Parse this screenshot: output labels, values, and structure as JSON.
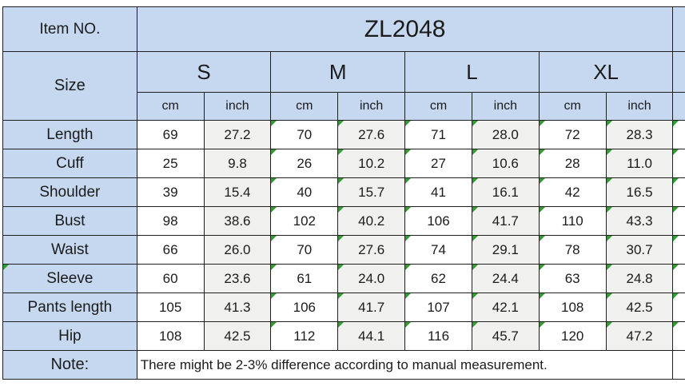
{
  "table": {
    "item_no_label": "Item NO.",
    "item_no_value": "ZL2048",
    "size_label": "Size",
    "sizes": [
      "S",
      "M",
      "L",
      "XL"
    ],
    "unit_headers": [
      "cm",
      "inch",
      "cm",
      "inch",
      "cm",
      "inch",
      "cm",
      "inch"
    ],
    "rows": [
      {
        "label": "Length",
        "values": [
          "69",
          "27.2",
          "70",
          "27.6",
          "71",
          "28.0",
          "72",
          "28.3"
        ]
      },
      {
        "label": "Cuff",
        "values": [
          "25",
          "9.8",
          "26",
          "10.2",
          "27",
          "10.6",
          "28",
          "11.0"
        ]
      },
      {
        "label": "Shoulder",
        "values": [
          "39",
          "15.4",
          "40",
          "15.7",
          "41",
          "16.1",
          "42",
          "16.5"
        ]
      },
      {
        "label": "Bust",
        "values": [
          "98",
          "38.6",
          "102",
          "40.2",
          "106",
          "41.7",
          "110",
          "43.3"
        ]
      },
      {
        "label": "Waist",
        "values": [
          "66",
          "26.0",
          "70",
          "27.6",
          "74",
          "29.1",
          "78",
          "30.7"
        ]
      },
      {
        "label": "Sleeve",
        "values": [
          "60",
          "23.6",
          "61",
          "24.0",
          "62",
          "24.4",
          "63",
          "24.8"
        ],
        "label_triangle": true
      },
      {
        "label": "Pants length",
        "values": [
          "105",
          "41.3",
          "106",
          "41.7",
          "107",
          "42.1",
          "108",
          "42.5"
        ]
      },
      {
        "label": "Hip",
        "values": [
          "108",
          "42.5",
          "112",
          "44.1",
          "116",
          "45.7",
          "120",
          "47.2"
        ]
      }
    ],
    "note_label": "Note:",
    "note_text": "There might be 2-3% difference according to manual measurement.",
    "triangle_value_columns": [
      2,
      3,
      4,
      5,
      6,
      7
    ],
    "cutoff_column_triangles": true,
    "colors": {
      "header_blue": "#c6d8f0",
      "inch_gray": "#f0f0ee",
      "border": "#1f1f1f",
      "triangle_green": "#2f9e2f"
    }
  }
}
